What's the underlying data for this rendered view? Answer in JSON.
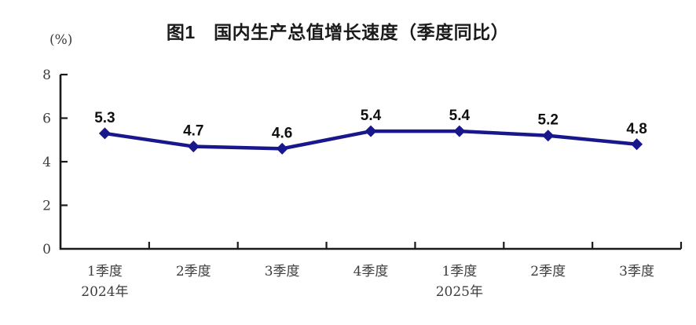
{
  "chart": {
    "title": "图1　国内生产总值增长速度（季度同比）",
    "unit_label": "(%)"
  },
  "chart_data": {
    "type": "line",
    "title": "图1　国内生产总值增长速度（季度同比）",
    "ylabel": "(%)",
    "xlabel": "",
    "categories": [
      "1季度",
      "2季度",
      "3季度",
      "4季度",
      "1季度",
      "2季度",
      "3季度"
    ],
    "year_labels": [
      {
        "index": 0,
        "label": "2024年"
      },
      {
        "index": 4,
        "label": "2025年"
      }
    ],
    "values": [
      5.3,
      4.7,
      4.6,
      5.4,
      5.4,
      5.2,
      4.8
    ],
    "data_labels": [
      "5.3",
      "4.7",
      "4.6",
      "5.4",
      "5.4",
      "5.2",
      "4.8"
    ],
    "ylim": [
      0,
      8
    ],
    "yticks": [
      0,
      2,
      4,
      6,
      8
    ],
    "grid": false,
    "legend_position": "none",
    "line_color": "#18188c",
    "marker": "diamond",
    "marker_color": "#18188c",
    "axis_color": "#1a1a1a",
    "tick_label_color": "#3d3d3d",
    "data_label_color": "#101010"
  }
}
